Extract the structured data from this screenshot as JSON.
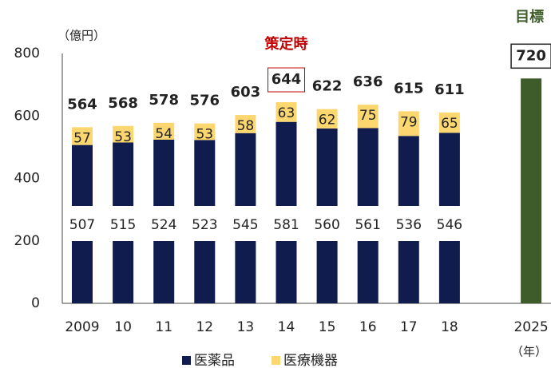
{
  "chart_data": {
    "type": "stacked_bar",
    "y_unit": "（億円）",
    "x_unit": "（年）",
    "categories": [
      "2009",
      "10",
      "11",
      "12",
      "13",
      "14",
      "15",
      "16",
      "17",
      "18",
      null,
      "2025"
    ],
    "series": [
      {
        "name": "医薬品",
        "color": "#0f1c4d",
        "values": [
          507,
          515,
          524,
          523,
          545,
          581,
          560,
          561,
          536,
          546,
          null,
          null
        ]
      },
      {
        "name": "医療機器",
        "color": "#fcd770",
        "values": [
          57,
          53,
          54,
          53,
          58,
          63,
          62,
          75,
          79,
          65,
          null,
          null
        ]
      }
    ],
    "totals": [
      564,
      568,
      578,
      576,
      603,
      644,
      622,
      636,
      615,
      611,
      null,
      null
    ],
    "highlight": {
      "index": 5,
      "label": "策定時",
      "color": "#c00000"
    },
    "target": {
      "index": 11,
      "label": "目標",
      "value": 720,
      "color": "#3d5c2a"
    },
    "ylim": [
      0,
      800
    ],
    "yticks": [
      0,
      200,
      400,
      600,
      800
    ]
  }
}
